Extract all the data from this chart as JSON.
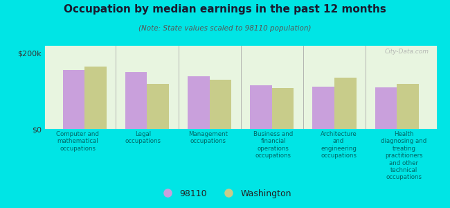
{
  "title": "Occupation by median earnings in the past 12 months",
  "subtitle": "(Note: State values scaled to 98110 population)",
  "categories": [
    "Computer and\nmathematical\noccupations",
    "Legal\noccupations",
    "Management\noccupations",
    "Business and\nfinancial\noperations\noccupations",
    "Architecture\nand\nengineering\noccupations",
    "Health\ndiagnosing and\ntreating\npractitioners\nand other\ntechnical\noccupations"
  ],
  "values_98110": [
    155000,
    150000,
    140000,
    115000,
    112000,
    110000
  ],
  "values_washington": [
    165000,
    120000,
    130000,
    108000,
    135000,
    120000
  ],
  "color_98110": "#c9a0dc",
  "color_washington": "#c8cc8a",
  "bar_width": 0.35,
  "ylim": [
    0,
    220000
  ],
  "yticks": [
    0,
    200000
  ],
  "ytick_labels": [
    "$0",
    "$200k"
  ],
  "background_color": "#e8f5e0",
  "outer_background": "#00e5e5",
  "legend_label_98110": "98110",
  "legend_label_washington": "Washington",
  "watermark": "City-Data.com",
  "title_color": "#1a1a2e",
  "subtitle_color": "#555555",
  "xlabel_color": "#006666"
}
